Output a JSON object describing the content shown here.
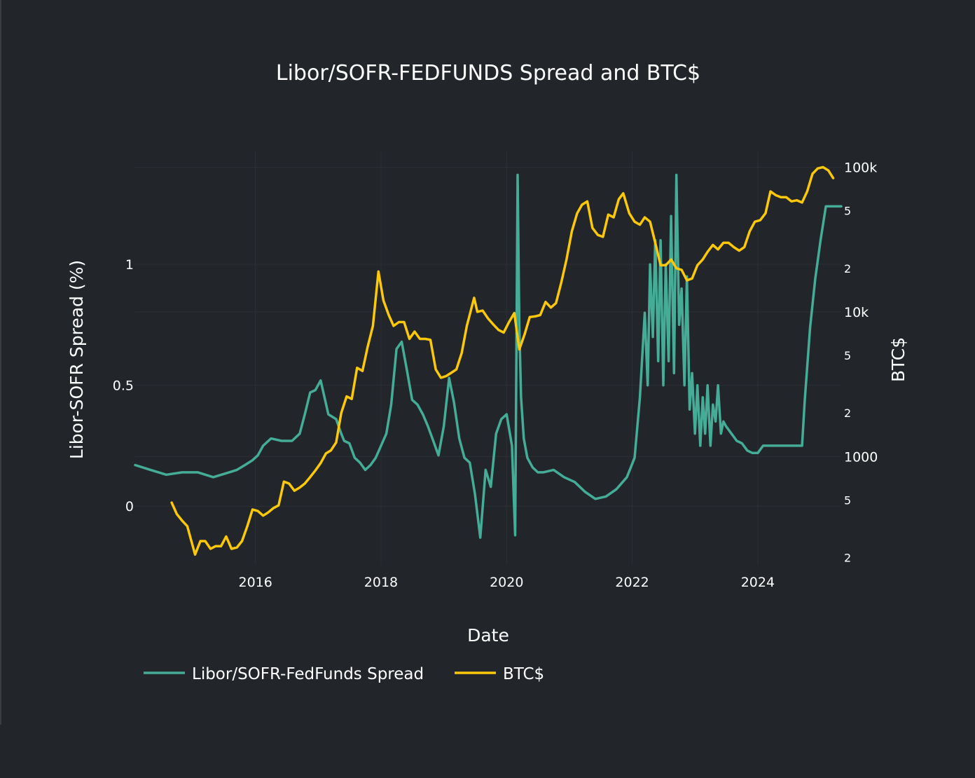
{
  "chart_data": {
    "type": "line",
    "title": "Libor/SOFR-FEDFUNDS Spread and BTC$",
    "xlabel": "Date",
    "ylabel": "Libor-SOFR Spread (%)",
    "y2label": "BTC$",
    "x_ticks": [
      "2016",
      "2018",
      "2020",
      "2022",
      "2024"
    ],
    "y_ticks": [
      "1",
      "0.5",
      "0"
    ],
    "y2_ticks": [
      "100k",
      "5",
      "2",
      "10k",
      "5",
      "2",
      "1000",
      "5",
      "2"
    ],
    "xlim": [
      "2014-02-01",
      "2025-05-01"
    ],
    "ylim": [
      -0.24,
      1.47
    ],
    "y2lim": [
      180,
      130000
    ],
    "y2_scale": "log",
    "grid": true,
    "legend_position": "bottom-left",
    "colors": {
      "spread": "#45ad97",
      "btc": "#fbc80b",
      "background": "#22252a",
      "grid": "#2c3036"
    },
    "series": [
      {
        "name": "Libor/SOFR-FedFunds Spread",
        "axis": "left",
        "x": [
          "2014-02-01",
          "2014-05-01",
          "2014-08-01",
          "2014-11-01",
          "2015-02-01",
          "2015-05-01",
          "2015-08-01",
          "2015-09-15",
          "2015-11-01",
          "2015-12-15",
          "2016-01-15",
          "2016-02-15",
          "2016-04-01",
          "2016-06-01",
          "2016-08-01",
          "2016-09-15",
          "2016-10-15",
          "2016-11-15",
          "2016-12-15",
          "2017-01-15",
          "2017-03-01",
          "2017-04-15",
          "2017-05-15",
          "2017-06-01",
          "2017-07-01",
          "2017-08-01",
          "2017-09-01",
          "2017-10-01",
          "2017-11-01",
          "2017-12-01",
          "2018-01-01",
          "2018-02-01",
          "2018-03-01",
          "2018-04-01",
          "2018-05-01",
          "2018-06-01",
          "2018-07-01",
          "2018-08-01",
          "2018-09-01",
          "2018-10-01",
          "2018-11-01",
          "2018-12-01",
          "2019-01-01",
          "2019-02-01",
          "2019-03-01",
          "2019-04-01",
          "2019-05-01",
          "2019-06-01",
          "2019-07-01",
          "2019-08-01",
          "2019-09-01",
          "2019-10-01",
          "2019-11-01",
          "2019-12-01",
          "2020-01-01",
          "2020-02-01",
          "2020-02-20",
          "2020-03-05",
          "2020-03-15",
          "2020-03-25",
          "2020-04-10",
          "2020-05-01",
          "2020-06-01",
          "2020-07-01",
          "2020-08-01",
          "2020-10-01",
          "2020-12-01",
          "2021-02-01",
          "2021-04-01",
          "2021-06-01",
          "2021-08-01",
          "2021-10-01",
          "2021-12-01",
          "2022-01-15",
          "2022-02-15",
          "2022-03-15",
          "2022-04-01",
          "2022-04-15",
          "2022-05-01",
          "2022-05-15",
          "2022-06-01",
          "2022-06-15",
          "2022-07-01",
          "2022-07-15",
          "2022-08-01",
          "2022-08-15",
          "2022-09-01",
          "2022-09-15",
          "2022-10-01",
          "2022-10-15",
          "2022-11-01",
          "2022-11-15",
          "2022-12-01",
          "2022-12-15",
          "2023-01-01",
          "2023-01-15",
          "2023-02-01",
          "2023-02-15",
          "2023-03-01",
          "2023-03-15",
          "2023-04-01",
          "2023-04-15",
          "2023-05-01",
          "2023-05-15",
          "2023-06-01",
          "2023-06-15",
          "2023-07-01",
          "2023-08-01",
          "2023-09-01",
          "2023-10-01",
          "2023-11-01",
          "2023-12-01",
          "2024-01-01",
          "2024-02-01",
          "2024-03-01",
          "2024-05-01",
          "2024-07-01",
          "2024-09-15",
          "2024-10-01",
          "2024-11-01",
          "2024-12-01",
          "2025-01-01",
          "2025-02-01",
          "2025-05-01"
        ],
        "y": [
          0.17,
          0.15,
          0.13,
          0.14,
          0.14,
          0.12,
          0.14,
          0.15,
          0.17,
          0.19,
          0.21,
          0.25,
          0.28,
          0.27,
          0.27,
          0.3,
          0.38,
          0.47,
          0.48,
          0.52,
          0.38,
          0.36,
          0.3,
          0.27,
          0.26,
          0.2,
          0.18,
          0.15,
          0.17,
          0.2,
          0.25,
          0.3,
          0.42,
          0.65,
          0.68,
          0.56,
          0.44,
          0.42,
          0.38,
          0.33,
          0.27,
          0.21,
          0.33,
          0.53,
          0.43,
          0.28,
          0.2,
          0.18,
          0.05,
          -0.13,
          0.15,
          0.08,
          0.3,
          0.36,
          0.38,
          0.25,
          -0.12,
          1.37,
          0.75,
          0.45,
          0.28,
          0.2,
          0.16,
          0.14,
          0.14,
          0.15,
          0.12,
          0.1,
          0.06,
          0.03,
          0.04,
          0.07,
          0.12,
          0.2,
          0.45,
          0.8,
          0.5,
          1.0,
          0.7,
          1.1,
          0.6,
          1.1,
          0.5,
          1.0,
          0.6,
          1.2,
          0.55,
          1.37,
          0.75,
          0.9,
          0.5,
          0.95,
          0.4,
          0.55,
          0.3,
          0.5,
          0.25,
          0.45,
          0.3,
          0.5,
          0.25,
          0.42,
          0.35,
          0.5,
          0.3,
          0.35,
          0.33,
          0.3,
          0.27,
          0.26,
          0.23,
          0.22,
          0.22,
          0.25,
          0.25,
          0.25,
          0.25,
          0.25,
          0.44,
          0.74,
          0.94,
          1.1,
          1.24,
          1.24
        ]
      },
      {
        "name": "BTC$",
        "axis": "right",
        "x": [
          "2014-09-01",
          "2014-10-01",
          "2014-11-01",
          "2014-12-01",
          "2015-01-15",
          "2015-02-15",
          "2015-03-15",
          "2015-04-15",
          "2015-05-15",
          "2015-06-15",
          "2015-07-15",
          "2015-08-15",
          "2015-09-15",
          "2015-10-15",
          "2015-11-15",
          "2015-12-15",
          "2016-01-15",
          "2016-02-15",
          "2016-03-15",
          "2016-04-15",
          "2016-05-15",
          "2016-06-15",
          "2016-07-15",
          "2016-08-15",
          "2016-09-15",
          "2016-10-15",
          "2016-11-15",
          "2016-12-15",
          "2017-01-15",
          "2017-02-15",
          "2017-03-15",
          "2017-04-15",
          "2017-05-15",
          "2017-06-15",
          "2017-07-15",
          "2017-08-15",
          "2017-09-15",
          "2017-10-15",
          "2017-11-15",
          "2017-12-17",
          "2018-01-15",
          "2018-02-15",
          "2018-03-15",
          "2018-04-15",
          "2018-05-15",
          "2018-06-15",
          "2018-07-15",
          "2018-08-15",
          "2018-09-15",
          "2018-10-15",
          "2018-11-15",
          "2018-12-15",
          "2019-01-15",
          "2019-02-15",
          "2019-03-15",
          "2019-04-15",
          "2019-05-15",
          "2019-06-26",
          "2019-07-15",
          "2019-08-15",
          "2019-09-15",
          "2019-10-15",
          "2019-11-15",
          "2019-12-15",
          "2020-01-15",
          "2020-02-15",
          "2020-03-15",
          "2020-04-15",
          "2020-05-15",
          "2020-06-15",
          "2020-07-15",
          "2020-08-15",
          "2020-09-15",
          "2020-10-15",
          "2020-11-15",
          "2020-12-15",
          "2021-01-15",
          "2021-02-15",
          "2021-03-15",
          "2021-04-15",
          "2021-05-15",
          "2021-06-15",
          "2021-07-15",
          "2021-08-15",
          "2021-09-15",
          "2021-10-15",
          "2021-11-10",
          "2021-12-15",
          "2022-01-15",
          "2022-02-15",
          "2022-03-15",
          "2022-04-15",
          "2022-05-15",
          "2022-06-15",
          "2022-07-15",
          "2022-08-15",
          "2022-09-15",
          "2022-10-15",
          "2022-11-15",
          "2022-12-15",
          "2023-01-15",
          "2023-02-15",
          "2023-03-15",
          "2023-04-15",
          "2023-05-15",
          "2023-06-15",
          "2023-07-15",
          "2023-08-15",
          "2023-09-15",
          "2023-10-15",
          "2023-11-15",
          "2023-12-15",
          "2024-01-15",
          "2024-02-15",
          "2024-03-15",
          "2024-04-15",
          "2024-05-15",
          "2024-06-15",
          "2024-07-15",
          "2024-08-15",
          "2024-09-15",
          "2024-10-15",
          "2024-11-15",
          "2024-12-15",
          "2025-01-15",
          "2025-02-15",
          "2025-03-15"
        ],
        "y": [
          480,
          400,
          360,
          330,
          210,
          260,
          260,
          230,
          240,
          240,
          280,
          230,
          235,
          260,
          330,
          430,
          420,
          390,
          410,
          440,
          460,
          670,
          650,
          580,
          610,
          650,
          720,
          800,
          900,
          1050,
          1100,
          1250,
          2000,
          2600,
          2500,
          4100,
          3900,
          5700,
          8000,
          19000,
          12000,
          9500,
          8000,
          8500,
          8500,
          6500,
          7300,
          6500,
          6500,
          6400,
          4000,
          3500,
          3600,
          3800,
          4000,
          5200,
          8000,
          12500,
          10000,
          10200,
          9000,
          8200,
          7500,
          7200,
          8500,
          9800,
          5500,
          7000,
          9200,
          9300,
          9500,
          11700,
          10700,
          11500,
          16000,
          23000,
          36000,
          48000,
          55000,
          58000,
          38000,
          34000,
          33000,
          47000,
          45000,
          60000,
          66000,
          48000,
          42000,
          40000,
          45000,
          42000,
          30000,
          21000,
          21000,
          23000,
          20000,
          19500,
          16500,
          17000,
          21000,
          23000,
          26000,
          29000,
          27000,
          30000,
          30000,
          28000,
          26500,
          28000,
          36000,
          42000,
          43000,
          48000,
          68000,
          64000,
          62000,
          62000,
          58000,
          59000,
          57000,
          68000,
          90000,
          98000,
          100000,
          95000,
          84000
        ]
      }
    ]
  }
}
